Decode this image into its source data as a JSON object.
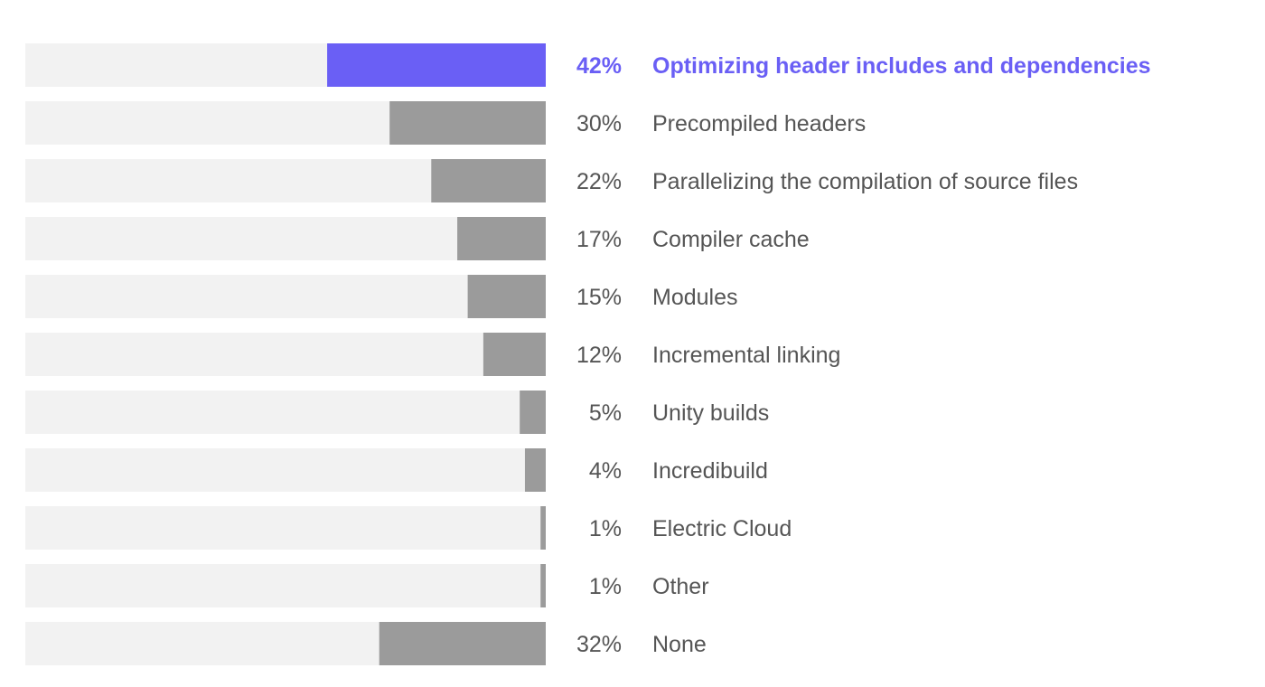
{
  "chart_data": {
    "type": "bar",
    "orientation": "horizontal",
    "title": "",
    "xlabel": "",
    "ylabel": "",
    "xlim": [
      0,
      100
    ],
    "unit": "%",
    "categories": [
      "Optimizing header includes and dependencies",
      "Precompiled headers",
      "Parallelizing the compilation of source files",
      "Compiler cache",
      "Modules",
      "Incremental linking",
      "Unity builds",
      "Incredibuild",
      "Electric Cloud",
      "Other",
      "None"
    ],
    "values": [
      42,
      30,
      22,
      17,
      15,
      12,
      5,
      4,
      1,
      1,
      32
    ],
    "value_labels": [
      "42%",
      "30%",
      "22%",
      "17%",
      "15%",
      "12%",
      "5%",
      "4%",
      "1%",
      "1%",
      "32%"
    ],
    "highlight_index": 0,
    "grid": false,
    "legend": "none"
  },
  "colors": {
    "highlight": "#6a5ff5",
    "bar": "#9b9b9b",
    "track": "#f2f2f2",
    "text": "#555555"
  }
}
